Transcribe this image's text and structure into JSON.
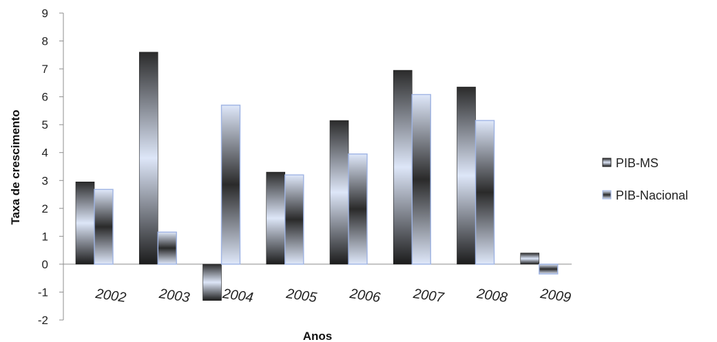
{
  "chart_data": {
    "type": "bar",
    "title": "",
    "xlabel": "Anos",
    "ylabel": "Taxa de crescimento",
    "categories": [
      "2002",
      "2003",
      "2004",
      "2005",
      "2006",
      "2007",
      "2008",
      "2009"
    ],
    "series": [
      {
        "name": "PIB-MS",
        "values": [
          2.95,
          7.6,
          -1.3,
          3.3,
          5.15,
          6.95,
          6.35,
          0.4
        ],
        "color": "#222222"
      },
      {
        "name": "PIB-Nacional",
        "values": [
          2.68,
          1.15,
          5.7,
          3.2,
          3.95,
          6.08,
          5.15,
          -0.35
        ],
        "color": "#c9d6f2"
      }
    ],
    "ylim": [
      -2,
      9
    ],
    "yticks": [
      "-2",
      "-1",
      "0",
      "1",
      "2",
      "3",
      "4",
      "5",
      "6",
      "7",
      "8",
      "9"
    ],
    "grid": false,
    "legend_position": "right"
  }
}
